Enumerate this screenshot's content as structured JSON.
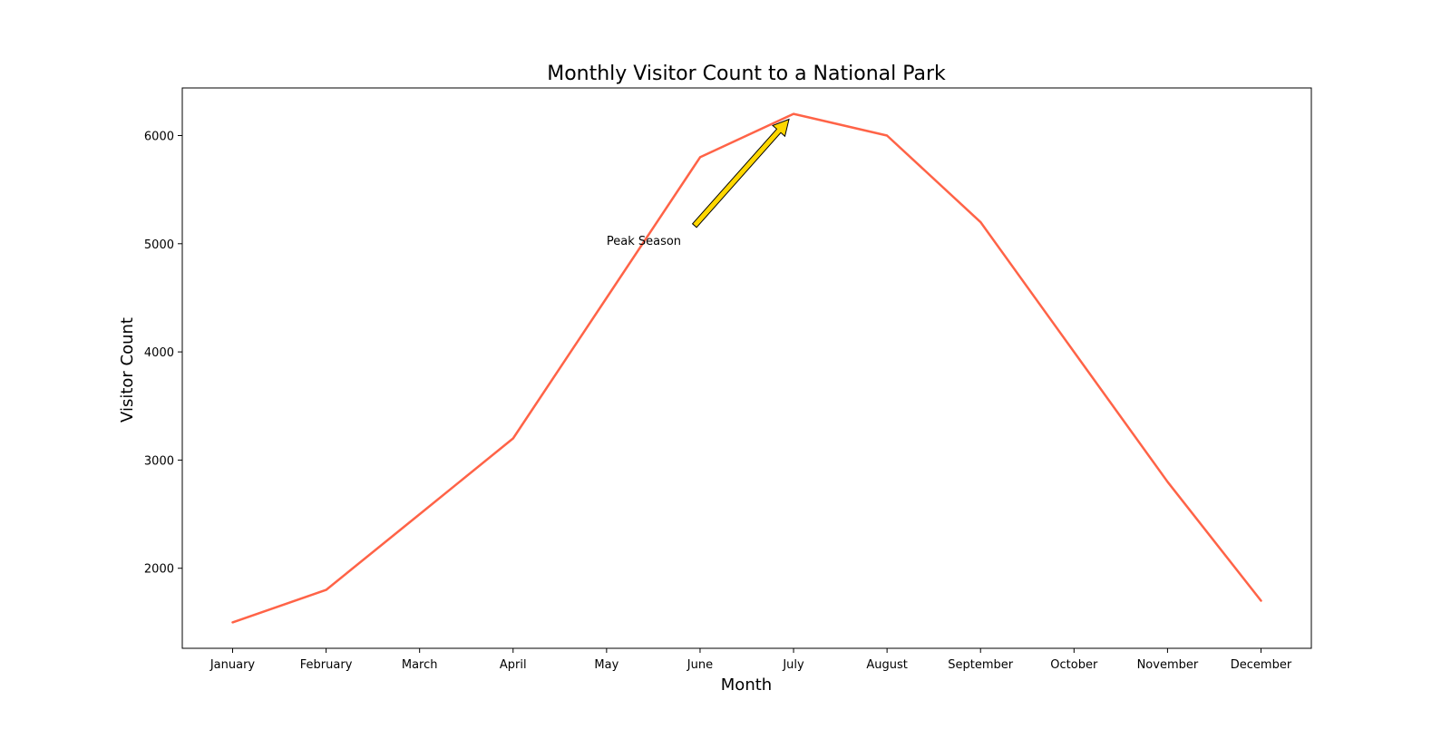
{
  "chart_data": {
    "type": "line",
    "title": "Monthly Visitor Count to a National Park",
    "xlabel": "Month",
    "ylabel": "Visitor Count",
    "categories": [
      "January",
      "February",
      "March",
      "April",
      "May",
      "June",
      "July",
      "August",
      "September",
      "October",
      "November",
      "December"
    ],
    "series": [
      {
        "values": [
          1500,
          1800,
          2500,
          3200,
          4500,
          5800,
          6200,
          6000,
          5200,
          4000,
          2800,
          1700
        ],
        "color": "#ff6347"
      }
    ],
    "yticks": [
      2000,
      3000,
      4000,
      5000,
      6000
    ],
    "ylim": [
      1260,
      6440
    ],
    "grid": false,
    "annotation": {
      "text": "Peak Season",
      "text_at": {
        "month_index": 4,
        "value": 5000
      },
      "arrow_to": {
        "month_index": 6,
        "value": 6200
      },
      "arrow_color": "#ffd700"
    }
  }
}
